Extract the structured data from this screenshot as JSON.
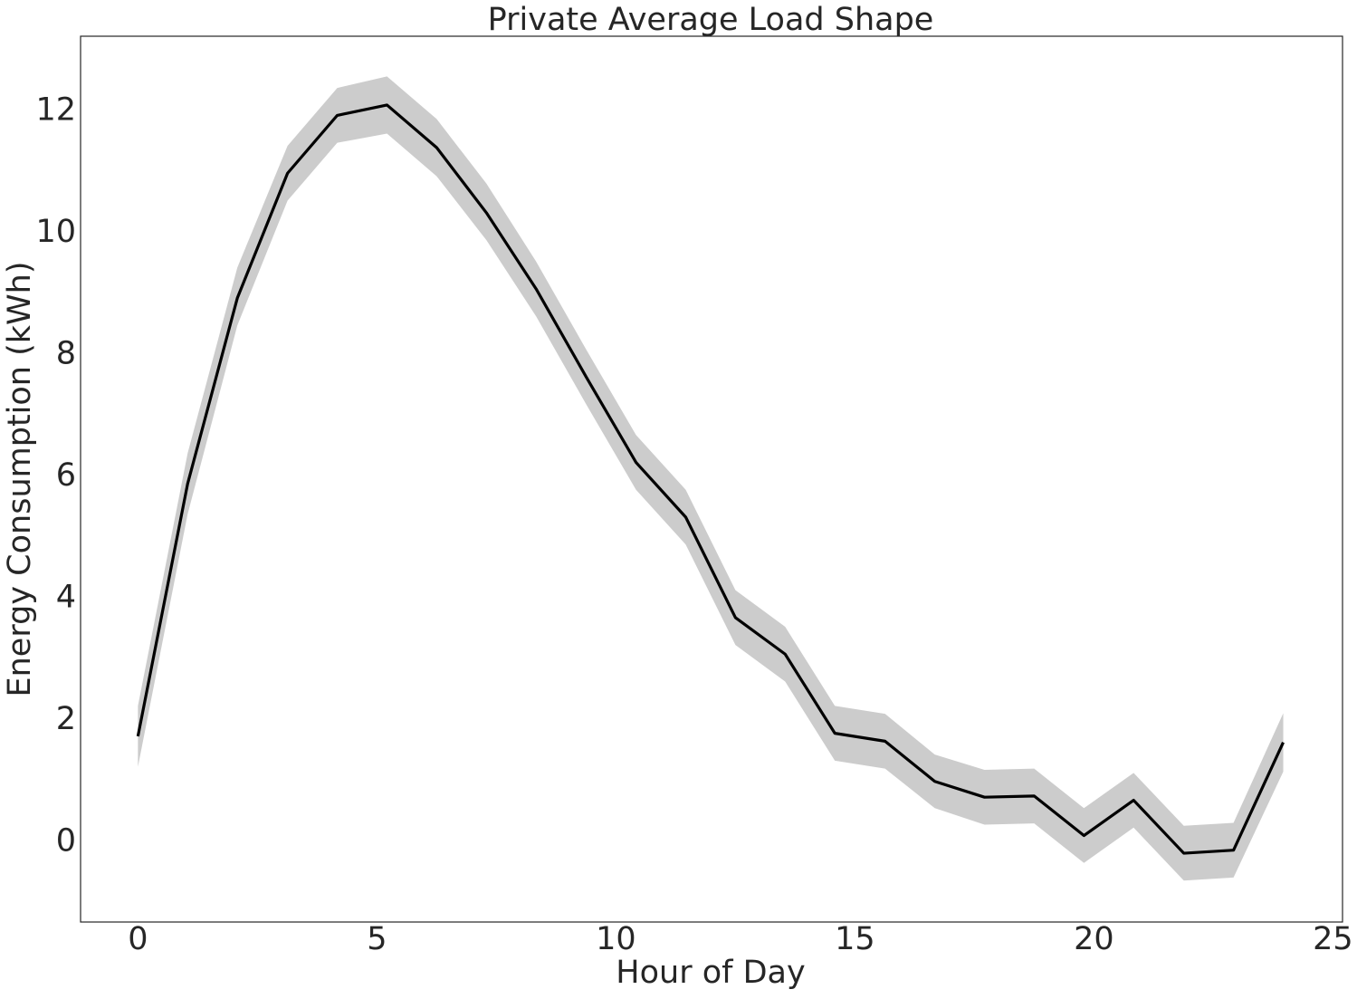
{
  "chart_data": {
    "type": "line",
    "title": "Private Average Load Shape",
    "xlabel": "Hour of Day",
    "ylabel": "Energy Consumption (kWh)",
    "xlim": [
      -1.2,
      25.2
    ],
    "ylim": [
      -1.35,
      13.2
    ],
    "grid": false,
    "legend": "none",
    "x_ticks": [
      0,
      5,
      10,
      15,
      20,
      25
    ],
    "x_tick_labels": [
      "0",
      "5",
      "10",
      "15",
      "20",
      "25"
    ],
    "y_ticks": [
      0,
      2,
      4,
      6,
      8,
      10,
      12
    ],
    "y_tick_labels": [
      "0",
      "2",
      "4",
      "6",
      "8",
      "10",
      "12"
    ],
    "series": [
      {
        "x": [
          0,
          1.04,
          2.08,
          3.13,
          4.17,
          5.21,
          6.25,
          7.29,
          8.33,
          9.38,
          10.42,
          11.46,
          12.5,
          13.54,
          14.58,
          15.63,
          16.67,
          17.71,
          18.75,
          19.79,
          20.83,
          21.88,
          22.92,
          23.96
        ],
        "y": [
          1.7,
          5.85,
          8.9,
          10.95,
          11.9,
          12.07,
          11.37,
          10.3,
          9.05,
          7.6,
          6.2,
          5.3,
          3.65,
          3.05,
          1.75,
          1.62,
          0.96,
          0.7,
          0.72,
          0.07,
          0.65,
          -0.22,
          -0.17,
          1.6
        ],
        "band_lower": [
          1.2,
          5.35,
          8.45,
          10.5,
          11.45,
          11.6,
          10.9,
          9.85,
          8.6,
          7.15,
          5.75,
          4.85,
          3.2,
          2.6,
          1.3,
          1.17,
          0.52,
          0.25,
          0.27,
          -0.38,
          0.2,
          -0.67,
          -0.62,
          1.12
        ],
        "band_upper": [
          2.2,
          6.35,
          9.4,
          11.4,
          12.35,
          12.54,
          11.84,
          10.78,
          9.5,
          8.05,
          6.65,
          5.75,
          4.1,
          3.5,
          2.2,
          2.07,
          1.4,
          1.15,
          1.17,
          0.52,
          1.1,
          0.23,
          0.28,
          2.08
        ],
        "color": "#000000",
        "band_color": "#cccccc"
      }
    ]
  }
}
